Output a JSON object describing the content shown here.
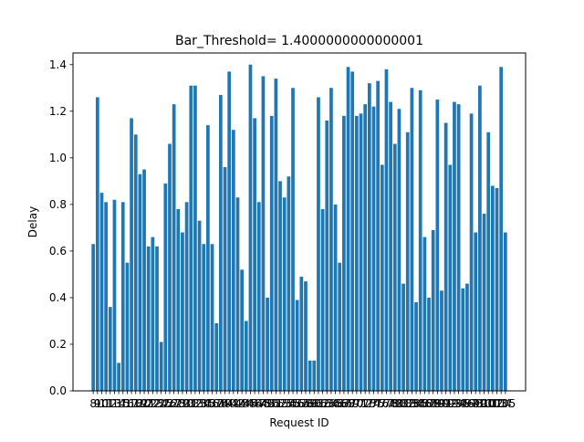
{
  "chart_data": {
    "type": "bar",
    "title": "Bar_Threshold= 1.4000000000000001",
    "xlabel": "Request ID",
    "ylabel": "Delay",
    "ylim": [
      0,
      1.45
    ],
    "yticks": [
      0.0,
      0.2,
      0.4,
      0.6,
      0.8,
      1.0,
      1.2,
      1.4
    ],
    "ytick_labels": [
      "0.0",
      "0.2",
      "0.4",
      "0.6",
      "0.8",
      "1.0",
      "1.2",
      "1.4"
    ],
    "grid": false,
    "bar_color": "#1f77b4",
    "categories": [
      "8",
      "9",
      "10",
      "11",
      "12",
      "13",
      "14",
      "15",
      "16",
      "17",
      "18",
      "19",
      "20",
      "21",
      "22",
      "23",
      "24",
      "25",
      "26",
      "27",
      "28",
      "29",
      "30",
      "31",
      "32",
      "33",
      "34",
      "35",
      "36",
      "37",
      "38",
      "39",
      "40",
      "41",
      "42",
      "43",
      "44",
      "45",
      "46",
      "47",
      "48",
      "49",
      "50",
      "51",
      "52",
      "53",
      "54",
      "55",
      "56",
      "57",
      "58",
      "59",
      "60",
      "61",
      "62",
      "63",
      "64",
      "65",
      "66",
      "67",
      "68",
      "69",
      "70",
      "71",
      "72",
      "73",
      "74",
      "75",
      "76",
      "77",
      "78",
      "79",
      "80",
      "81",
      "82",
      "83",
      "84",
      "85",
      "86",
      "87",
      "88",
      "89",
      "90",
      "91",
      "92",
      "93",
      "94",
      "95",
      "96",
      "97",
      "98",
      "99",
      "100",
      "101",
      "102",
      "103",
      "104",
      "105"
    ],
    "values": [
      0.63,
      1.26,
      0.85,
      0.81,
      0.36,
      0.82,
      0.12,
      0.81,
      0.55,
      1.17,
      1.1,
      0.93,
      0.95,
      0.62,
      0.66,
      0.62,
      0.21,
      0.89,
      1.06,
      1.23,
      0.78,
      0.68,
      0.81,
      1.31,
      1.31,
      0.73,
      0.63,
      1.14,
      0.63,
      0.29,
      1.27,
      0.96,
      1.37,
      1.12,
      0.83,
      0.52,
      0.3,
      1.4,
      1.17,
      0.81,
      1.35,
      0.4,
      1.18,
      1.34,
      0.9,
      0.83,
      0.92,
      1.3,
      0.39,
      0.49,
      0.47,
      0.13,
      0.13,
      1.26,
      0.78,
      1.16,
      1.3,
      0.8,
      0.55,
      1.18,
      1.39,
      1.37,
      1.18,
      1.19,
      1.23,
      1.32,
      1.22,
      1.33,
      0.97,
      1.38,
      1.24,
      1.06,
      1.21,
      0.46,
      1.11,
      1.3,
      0.38,
      1.29,
      0.66,
      0.4,
      0.69,
      1.25,
      0.43,
      1.15,
      0.97,
      1.24,
      1.23,
      0.44,
      0.46,
      1.19,
      0.68,
      1.31,
      0.76,
      1.11,
      0.88,
      0.87,
      1.39,
      0.68
    ]
  }
}
